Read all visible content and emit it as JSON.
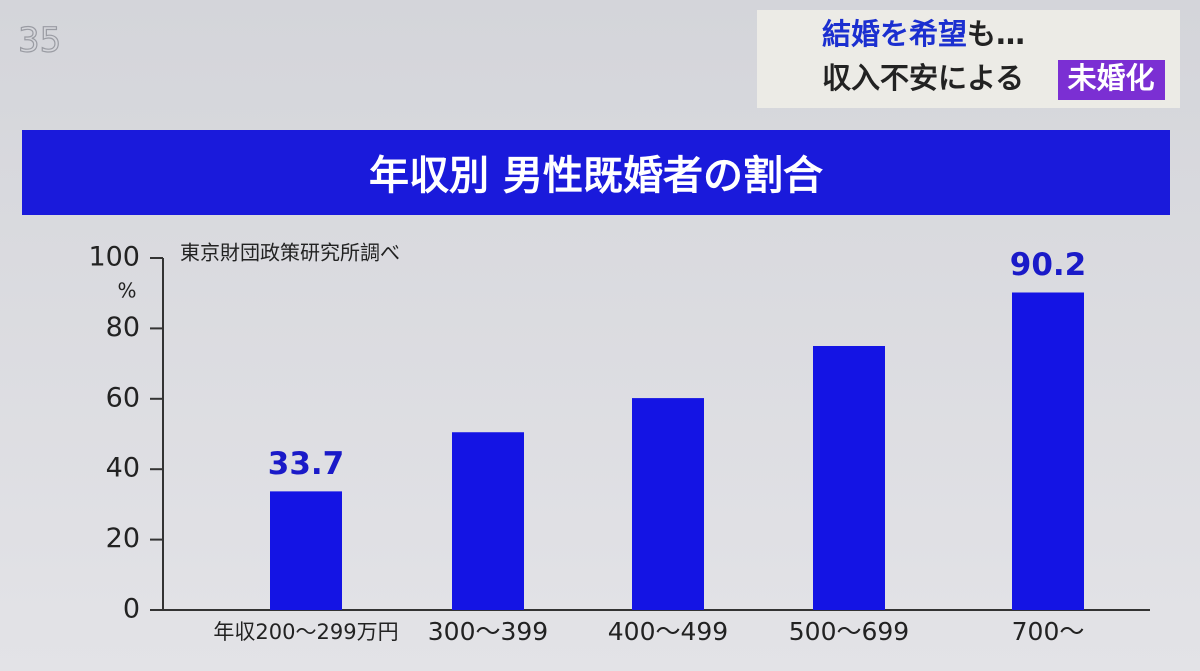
{
  "logo": "35",
  "header": {
    "line1": [
      "結婚を希望",
      "も…"
    ],
    "line2": [
      "収入不安による",
      "未婚化"
    ]
  },
  "chart_data": {
    "type": "bar",
    "title": "年収別 男性既婚者の割合",
    "source": "東京財団政策研究所調べ",
    "y_unit": "%",
    "categories": [
      "年収200〜299万円",
      "300〜399",
      "400〜499",
      "500〜699",
      "700〜"
    ],
    "values": [
      33.7,
      50.5,
      60.2,
      75,
      90.2
    ],
    "value_labels": [
      "33.7",
      null,
      null,
      null,
      "90.2"
    ],
    "color": "#1414e4",
    "ylim": [
      0,
      100
    ],
    "yticks": [
      0,
      20,
      40,
      60,
      80,
      100
    ],
    "grid": false
  }
}
